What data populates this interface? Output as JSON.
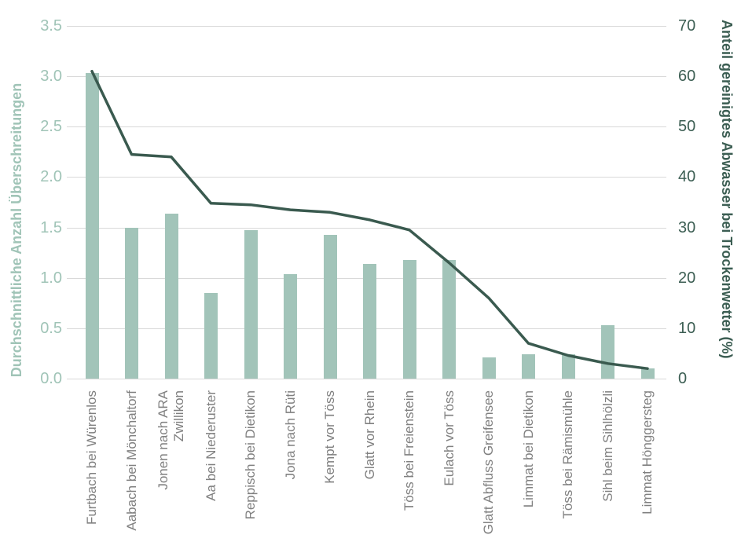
{
  "chart_data": {
    "type": "combo",
    "categories": [
      "Furtbach bei Würenlos",
      "Aabach bei Mönchaltorf",
      "Jonen nach ARA\nZwillikon",
      "Aa bei Niederuster",
      "Reppisch bei Dietikon",
      "Jona nach Rüti",
      "Kempt vor Töss",
      "Glatt vor Rhein",
      "Töss bei Freienstein",
      "Eulach vor Töss",
      "Glatt Abfluss Greifensee",
      "Limmat bei Dietikon",
      "Töss bei Rämismühle",
      "Sihl beim Sihlhölzli",
      "Limmat Hönggersteg"
    ],
    "series": [
      {
        "name": "Durchschnittliche Anzahl Überschreitungen",
        "type": "bar",
        "axis": "left",
        "color": "#a2c4b9",
        "values": [
          3.03,
          1.5,
          1.64,
          0.85,
          1.47,
          1.04,
          1.43,
          1.14,
          1.18,
          1.18,
          0.21,
          0.24,
          0.24,
          0.53,
          0.1
        ]
      },
      {
        "name": "Anteil gereinigtes Abwasser bei Trockenwetter (%)",
        "type": "line",
        "axis": "right",
        "color": "#3a5a4f",
        "values": [
          61,
          44.5,
          44,
          34.8,
          34.5,
          33.5,
          33,
          31.5,
          29.5,
          23,
          16,
          7,
          4.6,
          3,
          2
        ]
      }
    ],
    "left_axis": {
      "title": "Durchschnittliche Anzahl Überschreitungen",
      "min": 0,
      "max": 3.5,
      "tick_step": 0.5,
      "tick_labels": [
        "0.0",
        "0.5",
        "1.0",
        "1.5",
        "2.0",
        "2.5",
        "3.0",
        "3.5"
      ],
      "color": "#a0c4b7"
    },
    "right_axis": {
      "title": "Anteil gereinigtes Abwasser bei Trockenwetter (%)",
      "min": 0,
      "max": 70,
      "tick_step": 10,
      "tick_labels": [
        "0",
        "10",
        "20",
        "30",
        "40",
        "50",
        "60",
        "70"
      ],
      "color": "#3c5e53"
    },
    "x_axis": {
      "label_color": "#808080"
    },
    "grid": {
      "color": "#d9d9d9",
      "horizontal": true
    },
    "legend": "none",
    "background": "#ffffff"
  }
}
